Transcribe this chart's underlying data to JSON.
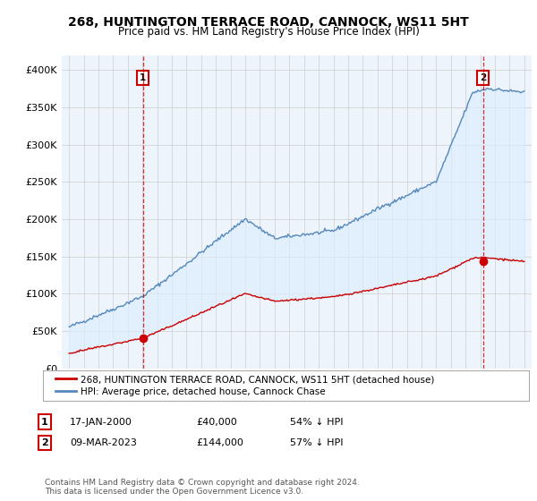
{
  "title": "268, HUNTINGTON TERRACE ROAD, CANNOCK, WS11 5HT",
  "subtitle": "Price paid vs. HM Land Registry's House Price Index (HPI)",
  "legend_line1": "268, HUNTINGTON TERRACE ROAD, CANNOCK, WS11 5HT (detached house)",
  "legend_line2": "HPI: Average price, detached house, Cannock Chase",
  "annotation1_label": "1",
  "annotation1_date": "17-JAN-2000",
  "annotation1_price": "£40,000",
  "annotation1_hpi": "54% ↓ HPI",
  "annotation1_year": 2000.04,
  "annotation1_value": 40000,
  "annotation2_label": "2",
  "annotation2_date": "09-MAR-2023",
  "annotation2_price": "£144,000",
  "annotation2_hpi": "57% ↓ HPI",
  "annotation2_year": 2023.19,
  "annotation2_value": 144000,
  "footer": "Contains HM Land Registry data © Crown copyright and database right 2024.\nThis data is licensed under the Open Government Licence v3.0.",
  "ylim": [
    0,
    420000
  ],
  "yticks": [
    0,
    50000,
    100000,
    150000,
    200000,
    250000,
    300000,
    350000,
    400000
  ],
  "red_color": "#cc0000",
  "blue_color": "#5588bb",
  "fill_color": "#ddeeff",
  "background_color": "#ffffff",
  "grid_color": "#cccccc",
  "plot_bg_color": "#eef4fb"
}
